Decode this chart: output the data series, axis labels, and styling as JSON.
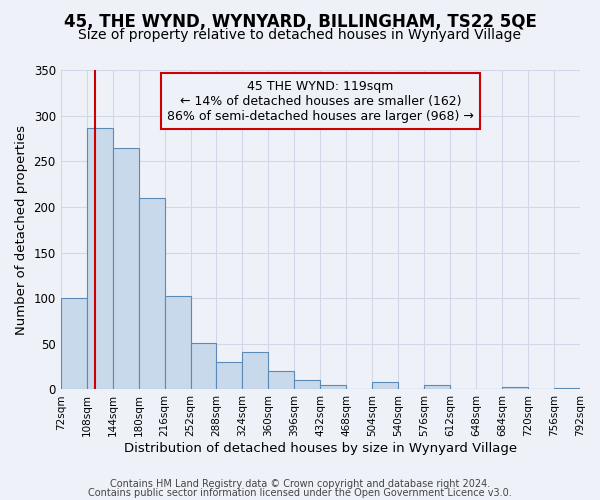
{
  "title": "45, THE WYND, WYNYARD, BILLINGHAM, TS22 5QE",
  "subtitle": "Size of property relative to detached houses in Wynyard Village",
  "xlabel": "Distribution of detached houses by size in Wynyard Village",
  "ylabel": "Number of detached properties",
  "footer_line1": "Contains HM Land Registry data © Crown copyright and database right 2024.",
  "footer_line2": "Contains public sector information licensed under the Open Government Licence v3.0.",
  "annotation_line1": "45 THE WYND: 119sqm",
  "annotation_line2": "← 14% of detached houses are smaller (162)",
  "annotation_line3": "86% of semi-detached houses are larger (968) →",
  "property_line_x": 119,
  "bin_edges": [
    72,
    108,
    144,
    180,
    216,
    252,
    288,
    324,
    360,
    396,
    432,
    468,
    504,
    540,
    576,
    612,
    648,
    684,
    720,
    756,
    792
  ],
  "bin_counts": [
    100,
    287,
    265,
    210,
    102,
    51,
    30,
    41,
    20,
    10,
    5,
    0,
    8,
    0,
    5,
    0,
    0,
    3,
    0,
    2
  ],
  "bar_color": "#c9d9ec",
  "bar_edge_color": "#5a8ab5",
  "vline_color": "#cc0000",
  "annotation_box_edge_color": "#cc0000",
  "grid_color": "#d0d8e8",
  "background_color": "#eef2f8",
  "tick_labels": [
    "72sqm",
    "108sqm",
    "144sqm",
    "180sqm",
    "216sqm",
    "252sqm",
    "288sqm",
    "324sqm",
    "360sqm",
    "396sqm",
    "432sqm",
    "468sqm",
    "504sqm",
    "540sqm",
    "576sqm",
    "612sqm",
    "648sqm",
    "684sqm",
    "720sqm",
    "756sqm",
    "792sqm"
  ],
  "ylim": [
    0,
    350
  ],
  "yticks": [
    0,
    50,
    100,
    150,
    200,
    250,
    300,
    350
  ],
  "title_fontsize": 12,
  "subtitle_fontsize": 10,
  "axis_label_fontsize": 9.5,
  "tick_fontsize": 7.5,
  "annotation_fontsize": 9,
  "footer_fontsize": 7
}
